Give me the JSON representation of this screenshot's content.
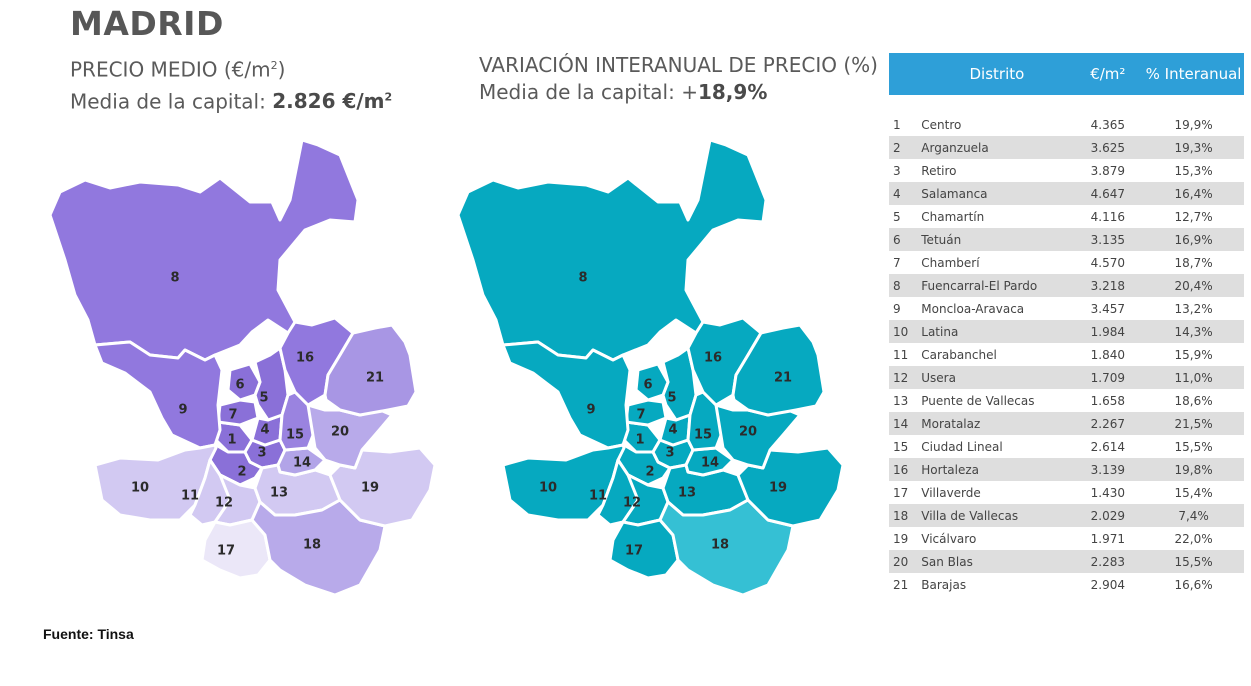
{
  "title": "MADRID",
  "left_header": {
    "line1_a": "PRECIO MEDIO (€/m",
    "line1_sup": "2",
    "line1_b": ")",
    "line2_a": "Media de la capital: ",
    "line2_value": "2.826 €/m",
    "line2_sup": "2"
  },
  "right_header": {
    "line1": "VARIACIÓN INTERANUAL DE PRECIO (%)",
    "line2_a": "Media de la capital: +",
    "line2_value": "18,9%"
  },
  "source": "Fuente: Tinsa",
  "table": {
    "headers": {
      "district": "Distrito",
      "price": "€/m²",
      "change": "% Interanual"
    },
    "rows": [
      {
        "n": "1",
        "name": "Centro",
        "price": "4.365",
        "change": "19,9%"
      },
      {
        "n": "2",
        "name": "Arganzuela",
        "price": "3.625",
        "change": "19,3%"
      },
      {
        "n": "3",
        "name": "Retiro",
        "price": "3.879",
        "change": "15,3%"
      },
      {
        "n": "4",
        "name": "Salamanca",
        "price": "4.647",
        "change": "16,4%"
      },
      {
        "n": "5",
        "name": "Chamartín",
        "price": "4.116",
        "change": "12,7%"
      },
      {
        "n": "6",
        "name": "Tetuán",
        "price": "3.135",
        "change": "16,9%"
      },
      {
        "n": "7",
        "name": "Chamberí",
        "price": "4.570",
        "change": "18,7%"
      },
      {
        "n": "8",
        "name": "Fuencarral-El Pardo",
        "price": "3.218",
        "change": "20,4%"
      },
      {
        "n": "9",
        "name": "Moncloa-Aravaca",
        "price": "3.457",
        "change": "13,2%"
      },
      {
        "n": "10",
        "name": "Latina",
        "price": "1.984",
        "change": "14,3%"
      },
      {
        "n": "11",
        "name": "Carabanchel",
        "price": "1.840",
        "change": "15,9%"
      },
      {
        "n": "12",
        "name": "Usera",
        "price": "1.709",
        "change": "11,0%"
      },
      {
        "n": "13",
        "name": "Puente de Vallecas",
        "price": "1.658",
        "change": "18,6%"
      },
      {
        "n": "14",
        "name": "Moratalaz",
        "price": "2.267",
        "change": "21,5%"
      },
      {
        "n": "15",
        "name": "Ciudad Lineal",
        "price": "2.614",
        "change": "15,5%"
      },
      {
        "n": "16",
        "name": "Hortaleza",
        "price": "3.139",
        "change": "19,8%"
      },
      {
        "n": "17",
        "name": "Villaverde",
        "price": "1.430",
        "change": "15,4%"
      },
      {
        "n": "18",
        "name": "Villa de Vallecas",
        "price": "2.029",
        "change": "7,4%"
      },
      {
        "n": "19",
        "name": "Vicálvaro",
        "price": "1.971",
        "change": "22,0%"
      },
      {
        "n": "20",
        "name": "San Blas",
        "price": "2.283",
        "change": "15,5%"
      },
      {
        "n": "21",
        "name": "Barajas",
        "price": "2.904",
        "change": "16,6%"
      }
    ]
  },
  "colors": {
    "price_map": {
      "1": "#8a70d8",
      "2": "#8a70d8",
      "3": "#8a70d8",
      "4": "#8a70d8",
      "5": "#8a70d8",
      "6": "#8a70d8",
      "7": "#8a70d8",
      "8": "#9178de",
      "9": "#9178de",
      "10": "#d2c9f2",
      "11": "#d2c9f2",
      "12": "#d2c9f2",
      "13": "#d2c9f2",
      "14": "#b2a4e8",
      "15": "#9a83e0",
      "16": "#9178de",
      "17": "#ebe7f8",
      "18": "#b8aaea",
      "19": "#d2c9f2",
      "20": "#b8aaea",
      "21": "#a896e4"
    },
    "change_map": {
      "1": "#06a9c0",
      "2": "#06a9c0",
      "3": "#06a9c0",
      "4": "#06a9c0",
      "5": "#06a9c0",
      "6": "#06a9c0",
      "7": "#06a9c0",
      "8": "#06a9c0",
      "9": "#06a9c0",
      "10": "#06a9c0",
      "11": "#06a9c0",
      "12": "#06a9c0",
      "13": "#06a9c0",
      "14": "#06a9c0",
      "15": "#06a9c0",
      "16": "#06a9c0",
      "17": "#06a9c0",
      "18": "#35c0d4",
      "19": "#06a9c0",
      "20": "#06a9c0",
      "21": "#06a9c0"
    },
    "table_header": "#2e9fd8"
  }
}
